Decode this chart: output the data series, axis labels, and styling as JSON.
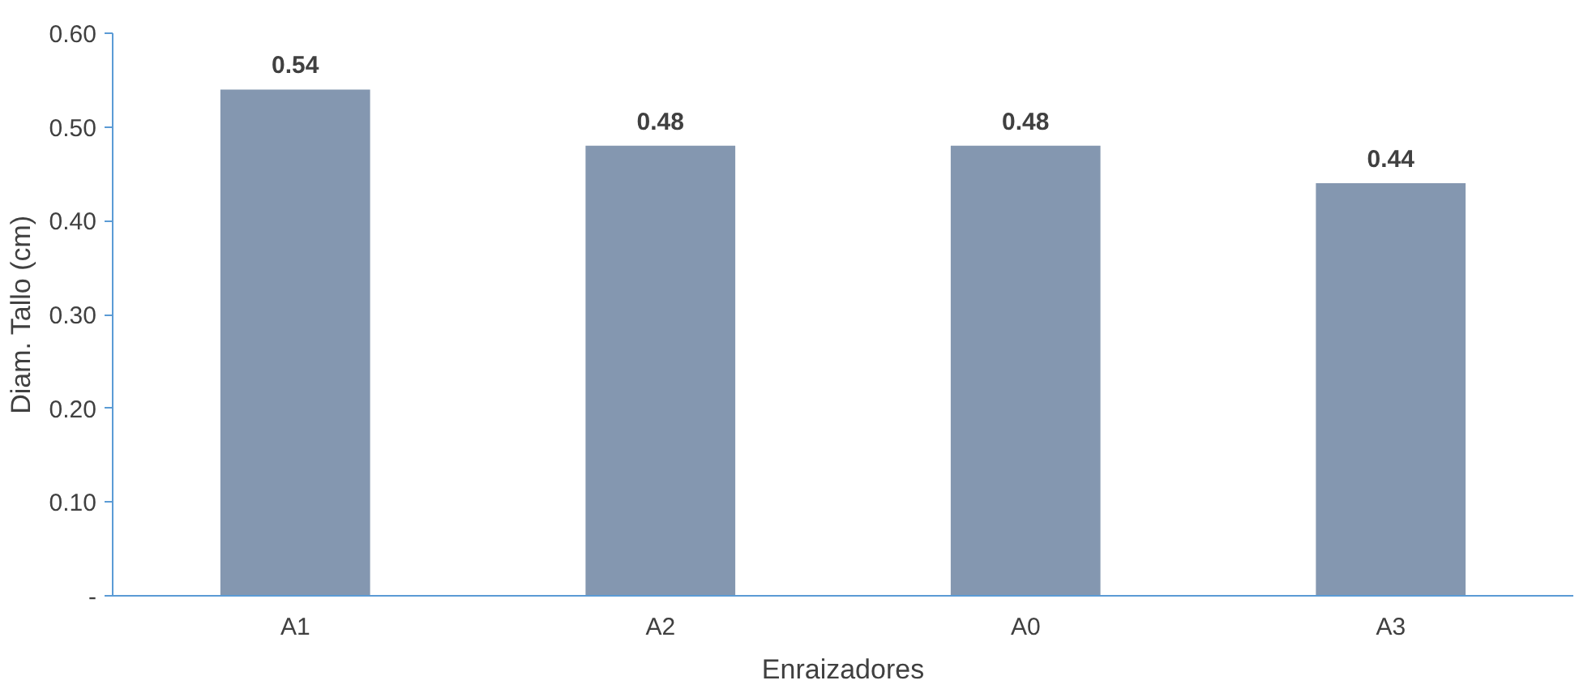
{
  "chart_data": {
    "type": "bar",
    "xlabel": "Enraizadores",
    "ylabel": "Diam. Tallo (cm)",
    "categories": [
      "A1",
      "A2",
      "A0",
      "A3"
    ],
    "values": [
      0.54,
      0.48,
      0.48,
      0.44
    ],
    "color": "#8497b0",
    "ylim": [
      0,
      0.6
    ],
    "yticks": [
      {
        "value": 0,
        "label": "-"
      },
      {
        "value": 0.1,
        "label": "0.10"
      },
      {
        "value": 0.2,
        "label": "0.20"
      },
      {
        "value": 0.3,
        "label": "0.30"
      },
      {
        "value": 0.4,
        "label": "0.40"
      },
      {
        "value": 0.5,
        "label": "0.50"
      },
      {
        "value": 0.6,
        "label": "0.60"
      }
    ],
    "data_labels": true
  }
}
